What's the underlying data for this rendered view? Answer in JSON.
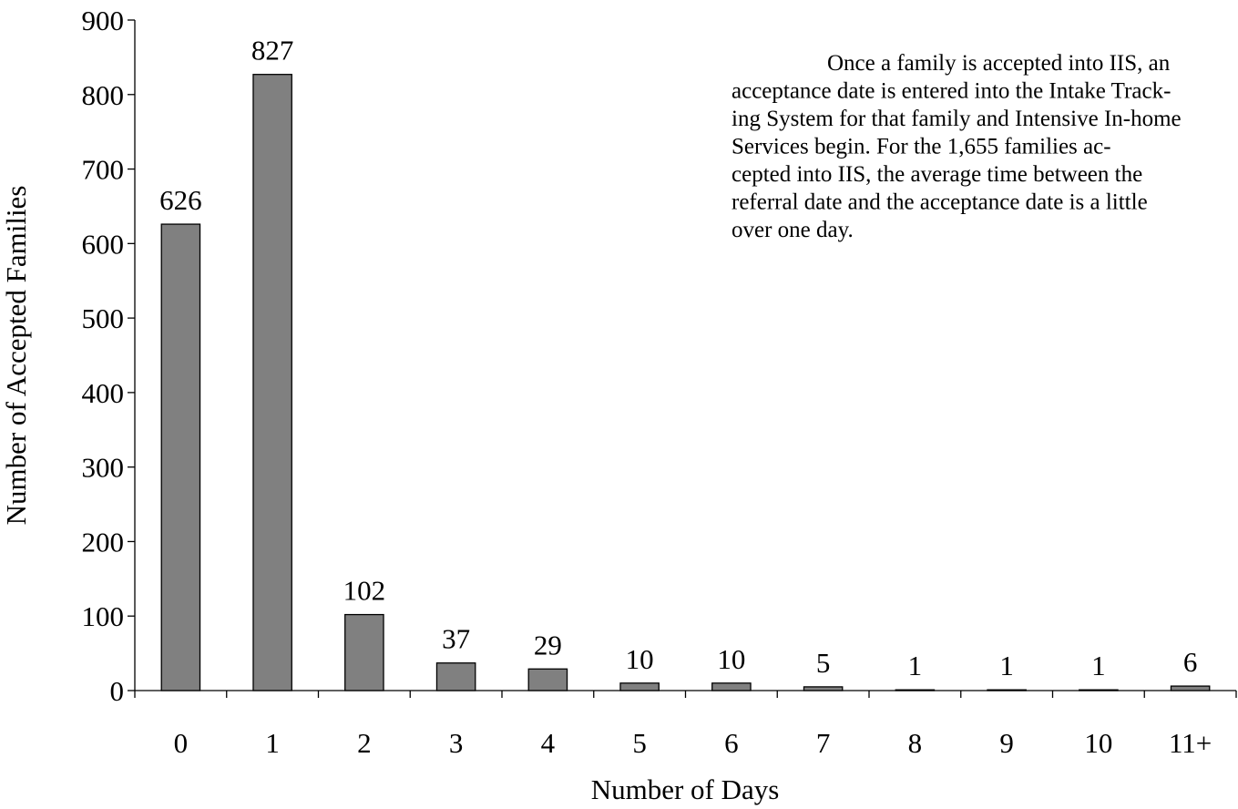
{
  "chart_data": {
    "type": "bar",
    "x_label": "Number of Days",
    "y_label": "Number of Accepted Families",
    "categories": [
      "0",
      "1",
      "2",
      "3",
      "4",
      "5",
      "6",
      "7",
      "8",
      "9",
      "10",
      "11+"
    ],
    "values": [
      626,
      827,
      102,
      37,
      29,
      10,
      10,
      5,
      1,
      1,
      1,
      6
    ],
    "color": "#808080",
    "ylim": [
      0,
      900
    ],
    "yticks": [
      0,
      100,
      200,
      300,
      400,
      500,
      600,
      700,
      800,
      900
    ],
    "grid": false,
    "annotation": [
      "Once a family is accepted into IIS, an",
      "acceptance date is entered into the Intake Track-",
      "ing System for that family and Intensive In-home",
      "Services begin.  For the 1,655  families ac-",
      "cepted into IIS, the average time between the",
      "referral date and the acceptance date is a little",
      "over one day."
    ]
  }
}
